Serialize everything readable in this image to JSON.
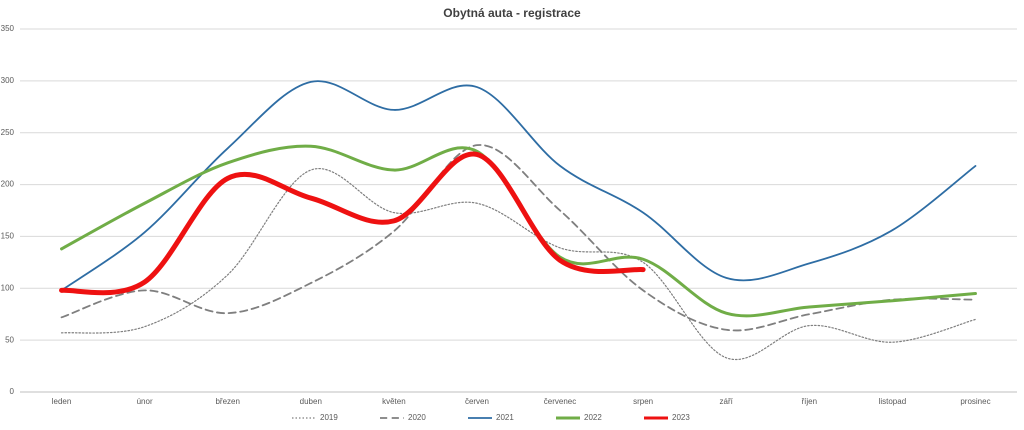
{
  "chart_data": {
    "type": "line",
    "title": "Obytná auta - registrace",
    "categories": [
      "leden",
      "únor",
      "březen",
      "duben",
      "květen",
      "červen",
      "červenec",
      "srpen",
      "září",
      "říjen",
      "listopad",
      "prosinec"
    ],
    "ylim": [
      0,
      350
    ],
    "yticks": [
      0,
      50,
      100,
      150,
      200,
      250,
      300,
      350
    ],
    "grid": true,
    "smooth": true,
    "legend": "bottom",
    "series": [
      {
        "name": "2019",
        "color": "#7f7f7f",
        "line_style": "dotted",
        "line_width": 1.2,
        "values": [
          57,
          63,
          113,
          214,
          173,
          182,
          139,
          125,
          33,
          64,
          48,
          70
        ]
      },
      {
        "name": "2020",
        "color": "#7f7f7f",
        "line_style": "dashed",
        "line_width": 1.8,
        "values": [
          72,
          98,
          76,
          105,
          155,
          238,
          175,
          98,
          60,
          75,
          89,
          89
        ]
      },
      {
        "name": "2021",
        "color": "#2e6da4",
        "line_style": "solid",
        "line_width": 1.8,
        "values": [
          98,
          154,
          235,
          299,
          272,
          294,
          218,
          173,
          110,
          124,
          156,
          218
        ]
      },
      {
        "name": "2022",
        "color": "#70ad47",
        "line_style": "solid",
        "line_width": 3,
        "values": [
          138,
          182,
          221,
          237,
          214,
          232,
          130,
          128,
          76,
          82,
          88,
          95
        ]
      },
      {
        "name": "2023",
        "color": "#ee1111",
        "line_style": "solid",
        "line_width": 5,
        "values": [
          98,
          106,
          206,
          187,
          165,
          229,
          127,
          118,
          null,
          null,
          null,
          null
        ]
      }
    ]
  }
}
